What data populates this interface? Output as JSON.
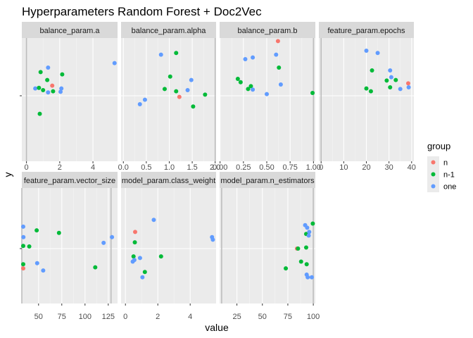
{
  "chart_data": {
    "type": "scatter",
    "title": "Hyperparameters Random Forest + Doc2Vec",
    "xlabel": "value",
    "ylabel": "y",
    "legend": {
      "title": "group",
      "placement": "right",
      "entries": [
        {
          "name": "n",
          "color": "#F8766D"
        },
        {
          "name": "n-1",
          "color": "#00BA38"
        },
        {
          "name": "one",
          "color": "#619CFF"
        }
      ]
    },
    "grid": true,
    "y_tick_label": "",
    "panels": [
      {
        "label": "balance_param.a",
        "xlim": [
          -0.28,
          5.48
        ],
        "xticks": [
          {
            "v": 0,
            "t": "0"
          },
          {
            "v": 2,
            "t": "2"
          },
          {
            "v": 4,
            "t": "4"
          }
        ],
        "vlines": [
          0
        ],
        "points": [
          {
            "x": 0.53,
            "y": 0.13,
            "group": "one"
          },
          {
            "x": 0.75,
            "y": 0.14,
            "group": "n-1"
          },
          {
            "x": 0.85,
            "y": 0.42,
            "group": "n-1"
          },
          {
            "x": 0.8,
            "y": -0.32,
            "group": "n-1"
          },
          {
            "x": 1.0,
            "y": 0.1,
            "group": "n-1"
          },
          {
            "x": 1.3,
            "y": 0.06,
            "group": "one"
          },
          {
            "x": 1.3,
            "y": 0.5,
            "group": "one"
          },
          {
            "x": 1.25,
            "y": 0.28,
            "group": "n-1"
          },
          {
            "x": 1.55,
            "y": 0.18,
            "group": "n"
          },
          {
            "x": 1.6,
            "y": 0.08,
            "group": "n-1"
          },
          {
            "x": 2.05,
            "y": 0.07,
            "group": "one"
          },
          {
            "x": 2.1,
            "y": 0.13,
            "group": "one"
          },
          {
            "x": 2.15,
            "y": 0.38,
            "group": "n-1"
          },
          {
            "x": 5.3,
            "y": 0.58,
            "group": "one"
          }
        ]
      },
      {
        "label": "balance_param.alpha",
        "xlim": [
          -0.05,
          2.02
        ],
        "xticks": [
          {
            "v": 0,
            "t": "0.0"
          },
          {
            "v": 0.5,
            "t": "0.5"
          },
          {
            "v": 1.0,
            "t": "1.0"
          },
          {
            "v": 1.5,
            "t": "1.5"
          },
          {
            "v": 2.0,
            "t": "2.0"
          }
        ],
        "vlines": [
          2.0
        ],
        "points": [
          {
            "x": 0.36,
            "y": -0.15,
            "group": "one"
          },
          {
            "x": 0.47,
            "y": -0.07,
            "group": "one"
          },
          {
            "x": 0.82,
            "y": 0.73,
            "group": "one"
          },
          {
            "x": 0.9,
            "y": 0.12,
            "group": "n-1"
          },
          {
            "x": 1.02,
            "y": 0.34,
            "group": "n-1"
          },
          {
            "x": 1.15,
            "y": 0.08,
            "group": "n-1"
          },
          {
            "x": 1.15,
            "y": 0.76,
            "group": "n-1"
          },
          {
            "x": 1.22,
            "y": -0.02,
            "group": "n"
          },
          {
            "x": 1.4,
            "y": 0.1,
            "group": "one"
          },
          {
            "x": 1.48,
            "y": 0.28,
            "group": "one"
          },
          {
            "x": 1.52,
            "y": -0.19,
            "group": "n-1"
          },
          {
            "x": 1.78,
            "y": 0.02,
            "group": "n-1"
          }
        ]
      },
      {
        "label": "balance_param.b",
        "xlim": [
          -0.005,
          1.02
        ],
        "xticks": [
          {
            "v": 0,
            "t": "0.00"
          },
          {
            "v": 0.25,
            "t": "0.25"
          },
          {
            "v": 0.5,
            "t": "0.50"
          },
          {
            "v": 0.75,
            "t": "0.75"
          },
          {
            "v": 1.0,
            "t": "1.00"
          }
        ],
        "vlines": [
          1.0
        ],
        "points": [
          {
            "x": 0.19,
            "y": 0.3,
            "group": "n-1"
          },
          {
            "x": 0.22,
            "y": 0.24,
            "group": "n-1"
          },
          {
            "x": 0.27,
            "y": 0.65,
            "group": "one"
          },
          {
            "x": 0.3,
            "y": 0.12,
            "group": "n-1"
          },
          {
            "x": 0.33,
            "y": 0.17,
            "group": "n-1"
          },
          {
            "x": 0.35,
            "y": 0.11,
            "group": "one"
          },
          {
            "x": 0.35,
            "y": 0.68,
            "group": "one"
          },
          {
            "x": 0.5,
            "y": 0.03,
            "group": "one"
          },
          {
            "x": 0.6,
            "y": 0.73,
            "group": "one"
          },
          {
            "x": 0.62,
            "y": 0.97,
            "group": "n"
          },
          {
            "x": 0.63,
            "y": 0.5,
            "group": "n-1"
          },
          {
            "x": 0.65,
            "y": 0.2,
            "group": "one"
          },
          {
            "x": 0.99,
            "y": 0.05,
            "group": "n-1"
          }
        ]
      },
      {
        "label": "feature_param.epochs",
        "xlim": [
          -1,
          41
        ],
        "xticks": [
          {
            "v": 0,
            "t": "0"
          },
          {
            "v": 10,
            "t": "10"
          },
          {
            "v": 20,
            "t": "20"
          },
          {
            "v": 30,
            "t": "30"
          },
          {
            "v": 40,
            "t": "40"
          }
        ],
        "vlines": [
          0
        ],
        "points": [
          {
            "x": 20.0,
            "y": 0.8,
            "group": "one"
          },
          {
            "x": 20.0,
            "y": 0.13,
            "group": "n-1"
          },
          {
            "x": 22.0,
            "y": 0.08,
            "group": "n-1"
          },
          {
            "x": 22.5,
            "y": 0.45,
            "group": "n-1"
          },
          {
            "x": 25.0,
            "y": 0.76,
            "group": "one"
          },
          {
            "x": 29.0,
            "y": 0.27,
            "group": "n-1"
          },
          {
            "x": 30.5,
            "y": 0.15,
            "group": "n-1"
          },
          {
            "x": 31.0,
            "y": 0.33,
            "group": "one"
          },
          {
            "x": 30.5,
            "y": 0.45,
            "group": "one"
          },
          {
            "x": 33.0,
            "y": 0.28,
            "group": "n-1"
          },
          {
            "x": 35.0,
            "y": 0.12,
            "group": "one"
          },
          {
            "x": 38.5,
            "y": 0.22,
            "group": "n"
          },
          {
            "x": 38.7,
            "y": 0.15,
            "group": "one"
          }
        ]
      },
      {
        "label": "feature_param.vector_size",
        "xlim": [
          32,
          135
        ],
        "xticks": [
          {
            "v": 50,
            "t": "50"
          },
          {
            "v": 75,
            "t": "75"
          },
          {
            "v": 100,
            "t": "100"
          },
          {
            "v": 125,
            "t": "125"
          }
        ],
        "vlines": [
          32,
          128
        ],
        "points": [
          {
            "x": 33.5,
            "y": 0.42,
            "group": "one"
          },
          {
            "x": 33.7,
            "y": 0.22,
            "group": "one"
          },
          {
            "x": 33.5,
            "y": 0.05,
            "group": "n-1"
          },
          {
            "x": 33.5,
            "y": -0.3,
            "group": "n-1"
          },
          {
            "x": 33.5,
            "y": -0.38,
            "group": "n"
          },
          {
            "x": 40.0,
            "y": 0.04,
            "group": "n-1"
          },
          {
            "x": 48.0,
            "y": 0.35,
            "group": "n-1"
          },
          {
            "x": 48.5,
            "y": -0.28,
            "group": "one"
          },
          {
            "x": 55.0,
            "y": -0.42,
            "group": "one"
          },
          {
            "x": 72.0,
            "y": 0.3,
            "group": "n-1"
          },
          {
            "x": 111.0,
            "y": -0.36,
            "group": "n-1"
          },
          {
            "x": 120.0,
            "y": 0.11,
            "group": "one"
          },
          {
            "x": 129.0,
            "y": 0.22,
            "group": "one"
          }
        ]
      },
      {
        "label": "model_param.class_weight",
        "xlim": [
          -0.27,
          5.6
        ],
        "xticks": [
          {
            "v": 0,
            "t": "0"
          },
          {
            "v": 2,
            "t": "2"
          },
          {
            "v": 4,
            "t": "4"
          }
        ],
        "vlines": [],
        "points": [
          {
            "x": 0.45,
            "y": -0.25,
            "group": "one"
          },
          {
            "x": 0.5,
            "y": -0.15,
            "group": "n-1"
          },
          {
            "x": 0.55,
            "y": -0.22,
            "group": "one"
          },
          {
            "x": 0.58,
            "y": 0.12,
            "group": "n-1"
          },
          {
            "x": 0.6,
            "y": 0.32,
            "group": "n"
          },
          {
            "x": 0.9,
            "y": -0.18,
            "group": "one"
          },
          {
            "x": 1.05,
            "y": -0.55,
            "group": "one"
          },
          {
            "x": 1.2,
            "y": -0.45,
            "group": "n-1"
          },
          {
            "x": 1.75,
            "y": 0.55,
            "group": "one"
          },
          {
            "x": 2.2,
            "y": -0.15,
            "group": "n-1"
          },
          {
            "x": 5.35,
            "y": 0.22,
            "group": "one"
          },
          {
            "x": 5.4,
            "y": 0.17,
            "group": "one"
          }
        ]
      },
      {
        "label": "model_param.n_estimators",
        "xlim": [
          8,
          102
        ],
        "xticks": [
          {
            "v": 25,
            "t": "25"
          },
          {
            "v": 50,
            "t": "50"
          },
          {
            "v": 75,
            "t": "75"
          },
          {
            "v": 100,
            "t": "100"
          }
        ],
        "vlines": [
          10,
          100
        ],
        "points": [
          {
            "x": 73.0,
            "y": -0.38,
            "group": "n-1"
          },
          {
            "x": 84.0,
            "y": 0.0,
            "group": "n"
          },
          {
            "x": 85.0,
            "y": 0.0,
            "group": "n-1"
          },
          {
            "x": 88.0,
            "y": -0.25,
            "group": "n-1"
          },
          {
            "x": 92.0,
            "y": 0.45,
            "group": "one"
          },
          {
            "x": 93.0,
            "y": 0.28,
            "group": "n-1"
          },
          {
            "x": 93.0,
            "y": 0.02,
            "group": "n-1"
          },
          {
            "x": 93.5,
            "y": -0.3,
            "group": "n-1"
          },
          {
            "x": 93.5,
            "y": -0.5,
            "group": "one"
          },
          {
            "x": 94.0,
            "y": 0.4,
            "group": "one"
          },
          {
            "x": 94.5,
            "y": -0.55,
            "group": "one"
          },
          {
            "x": 95.5,
            "y": 0.25,
            "group": "one"
          },
          {
            "x": 96.0,
            "y": 0.32,
            "group": "one"
          },
          {
            "x": 98.5,
            "y": -0.55,
            "group": "one"
          },
          {
            "x": 99.5,
            "y": 0.48,
            "group": "n-1"
          }
        ]
      }
    ]
  }
}
